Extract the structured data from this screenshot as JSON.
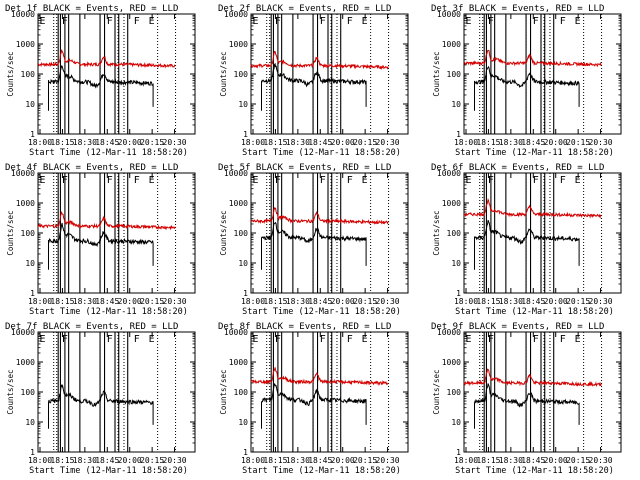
{
  "figure": {
    "title_suffix": "BLACK = Events, RED = LLD",
    "xlabel": "Start Time (12-Mar-11 18:58:20)",
    "ylabel": "Counts/sec"
  },
  "chart_data": [
    {
      "type": "line",
      "title": "Det 1f BLACK = Events, RED = LLD",
      "black_base": 55,
      "red_base": 210,
      "red_visible": true
    },
    {
      "type": "line",
      "title": "Det 2f BLACK = Events, RED = LLD",
      "black_base": 60,
      "red_base": 190,
      "red_visible": true
    },
    {
      "type": "line",
      "title": "Det 3f BLACK = Events, RED = LLD",
      "black_base": 55,
      "red_base": 230,
      "red_visible": true
    },
    {
      "type": "line",
      "title": "Det 4f BLACK = Events, RED = LLD",
      "black_base": 55,
      "red_base": 170,
      "red_visible": true
    },
    {
      "type": "line",
      "title": "Det 5f BLACK = Events, RED = LLD",
      "black_base": 70,
      "red_base": 250,
      "red_visible": true
    },
    {
      "type": "line",
      "title": "Det 6f BLACK = Events, RED = LLD",
      "black_base": 70,
      "red_base": 420,
      "red_visible": true
    },
    {
      "type": "line",
      "title": "Det 7f BLACK = Events, RED = LLD",
      "black_base": 50,
      "red_base": 0,
      "red_visible": false
    },
    {
      "type": "line",
      "title": "Det 8f BLACK = Events, RED = LLD",
      "black_base": 55,
      "red_base": 220,
      "red_visible": true
    },
    {
      "type": "line",
      "title": "Det 9f BLACK = Events, RED = LLD",
      "black_base": 50,
      "red_base": 200,
      "red_visible": true
    }
  ],
  "shared": {
    "x_ticks": [
      "18:00",
      "18:15",
      "18:30",
      "18:45",
      "20:00",
      "20:15",
      "20:30"
    ],
    "y_ticks": [
      "1",
      "10",
      "100",
      "1000",
      "10000"
    ],
    "ylim": [
      1,
      10000
    ],
    "xlim_minutes": [
      0,
      105
    ],
    "solid_lines_min": [
      13.5,
      15,
      18,
      20.5,
      28,
      41.5,
      44.5,
      51.5,
      54,
      60
    ],
    "dotted_lines_min": [
      10.5,
      12.5,
      41.5,
      53.5,
      57.5,
      80,
      92
    ],
    "markers": [
      {
        "label": "E",
        "x_min": 1
      },
      {
        "label": "F",
        "x_min": 16
      },
      {
        "label": "F",
        "x_min": 46
      },
      {
        "label": "F",
        "x_min": 64
      },
      {
        "label": "E",
        "x_min": 74
      }
    ],
    "events_range_min": [
      7,
      77
    ],
    "red_range_min": [
      0,
      92
    ],
    "colors": {
      "black": "#000000",
      "red": "#d40000"
    }
  }
}
